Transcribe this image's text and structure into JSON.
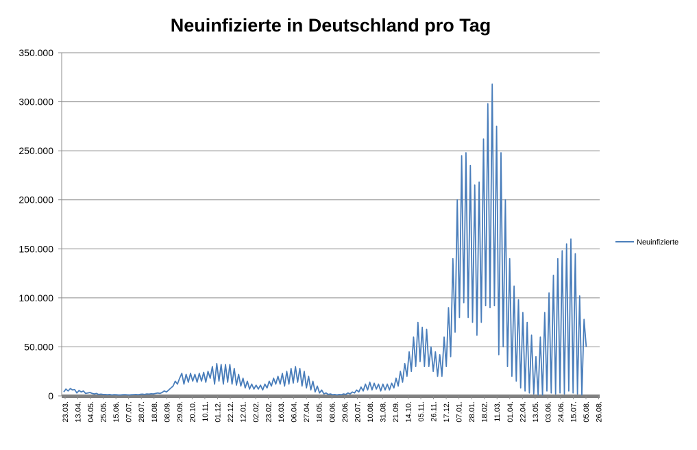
{
  "chart_data": {
    "type": "line",
    "title": "Neuinfizierte in Deutschland pro Tag",
    "xlabel": "",
    "ylabel": "",
    "ylim": [
      0,
      350000
    ],
    "yticks": [
      0,
      50000,
      100000,
      150000,
      200000,
      250000,
      300000,
      350000
    ],
    "ytick_labels": [
      "0",
      "50.000",
      "100.000",
      "150.000",
      "200.000",
      "250.000",
      "300.000",
      "350.000"
    ],
    "x_tick_labels": [
      "23.03.",
      "13.04.",
      "04.05.",
      "25.05.",
      "15.06.",
      "07.07.",
      "28.07.",
      "18.08.",
      "08.09.",
      "29.09.",
      "20.10.",
      "10.11.",
      "01.12.",
      "22.12.",
      "12.01.",
      "02.02.",
      "23.02.",
      "16.03.",
      "06.04.",
      "27.04.",
      "18.05.",
      "08.06.",
      "29.06.",
      "20.07.",
      "10.08.",
      "31.08.",
      "21.09.",
      "14.10.",
      "05.11.",
      "26.11.",
      "17.12.",
      "07.01.",
      "28.01.",
      "18.02.",
      "11.03.",
      "01.04.",
      "22.04.",
      "13.05.",
      "03.06.",
      "24.06.",
      "15.07.",
      "05.08.",
      "26.08."
    ],
    "grid": true,
    "legend": "right",
    "color": "#4a7ebb",
    "series": [
      {
        "name": "Neuinfizierte",
        "values": [
          4000,
          7000,
          5000,
          7500,
          6000,
          6500,
          3000,
          5500,
          4000,
          5000,
          2500,
          3000,
          3500,
          2500,
          2000,
          2500,
          1500,
          1800,
          1500,
          1500,
          1200,
          1500,
          1000,
          1300,
          1200,
          1000,
          1000,
          1200,
          1300,
          1100,
          1000,
          1200,
          1300,
          1500,
          1200,
          1600,
          1800,
          1500,
          2000,
          1800,
          2200,
          2000,
          2500,
          3000,
          2500,
          3500,
          5000,
          4000,
          6000,
          8000,
          10000,
          15000,
          12000,
          18000,
          23000,
          12000,
          22000,
          14000,
          23000,
          15000,
          22000,
          14000,
          23000,
          15000,
          24000,
          14000,
          25000,
          18000,
          30000,
          12000,
          33000,
          15000,
          32000,
          12000,
          32000,
          14000,
          32000,
          12000,
          28000,
          11000,
          22000,
          10000,
          18000,
          8000,
          15000,
          7000,
          12000,
          7000,
          11000,
          7000,
          11000,
          6000,
          12000,
          8000,
          15000,
          10000,
          18000,
          12000,
          20000,
          12000,
          23000,
          10000,
          25000,
          12000,
          28000,
          13000,
          30000,
          14000,
          28000,
          10000,
          25000,
          8000,
          20000,
          6000,
          15000,
          4000,
          10000,
          3000,
          6000,
          2000,
          3000,
          1500,
          2000,
          1200,
          1500,
          1000,
          1500,
          1200,
          2000,
          1500,
          3000,
          2000,
          4000,
          3000,
          6000,
          4000,
          9000,
          5000,
          12000,
          6000,
          14000,
          6000,
          13000,
          7000,
          12000,
          5000,
          12000,
          6000,
          12000,
          6000,
          13000,
          8000,
          18000,
          10000,
          25000,
          14000,
          33000,
          20000,
          45000,
          25000,
          60000,
          30000,
          75000,
          35000,
          70000,
          30000,
          68000,
          30000,
          50000,
          25000,
          45000,
          20000,
          42000,
          20000,
          60000,
          30000,
          90000,
          40000,
          140000,
          65000,
          200000,
          80000,
          245000,
          95000,
          248000,
          80000,
          235000,
          75000,
          215000,
          62000,
          218000,
          75000,
          262000,
          92000,
          298000,
          90000,
          318000,
          92000,
          275000,
          42000,
          248000,
          50000,
          200000,
          30000,
          140000,
          20000,
          112000,
          15000,
          98000,
          8000,
          85000,
          5000,
          75000,
          3000,
          62000,
          2000,
          40000,
          1000,
          60000,
          1000,
          85000,
          5000,
          105000,
          3000,
          123000,
          2000,
          140000,
          3000,
          148000,
          2000,
          155000,
          5000,
          160000,
          3000,
          145000,
          2000,
          102000,
          1000,
          78000,
          50000
        ]
      }
    ]
  }
}
